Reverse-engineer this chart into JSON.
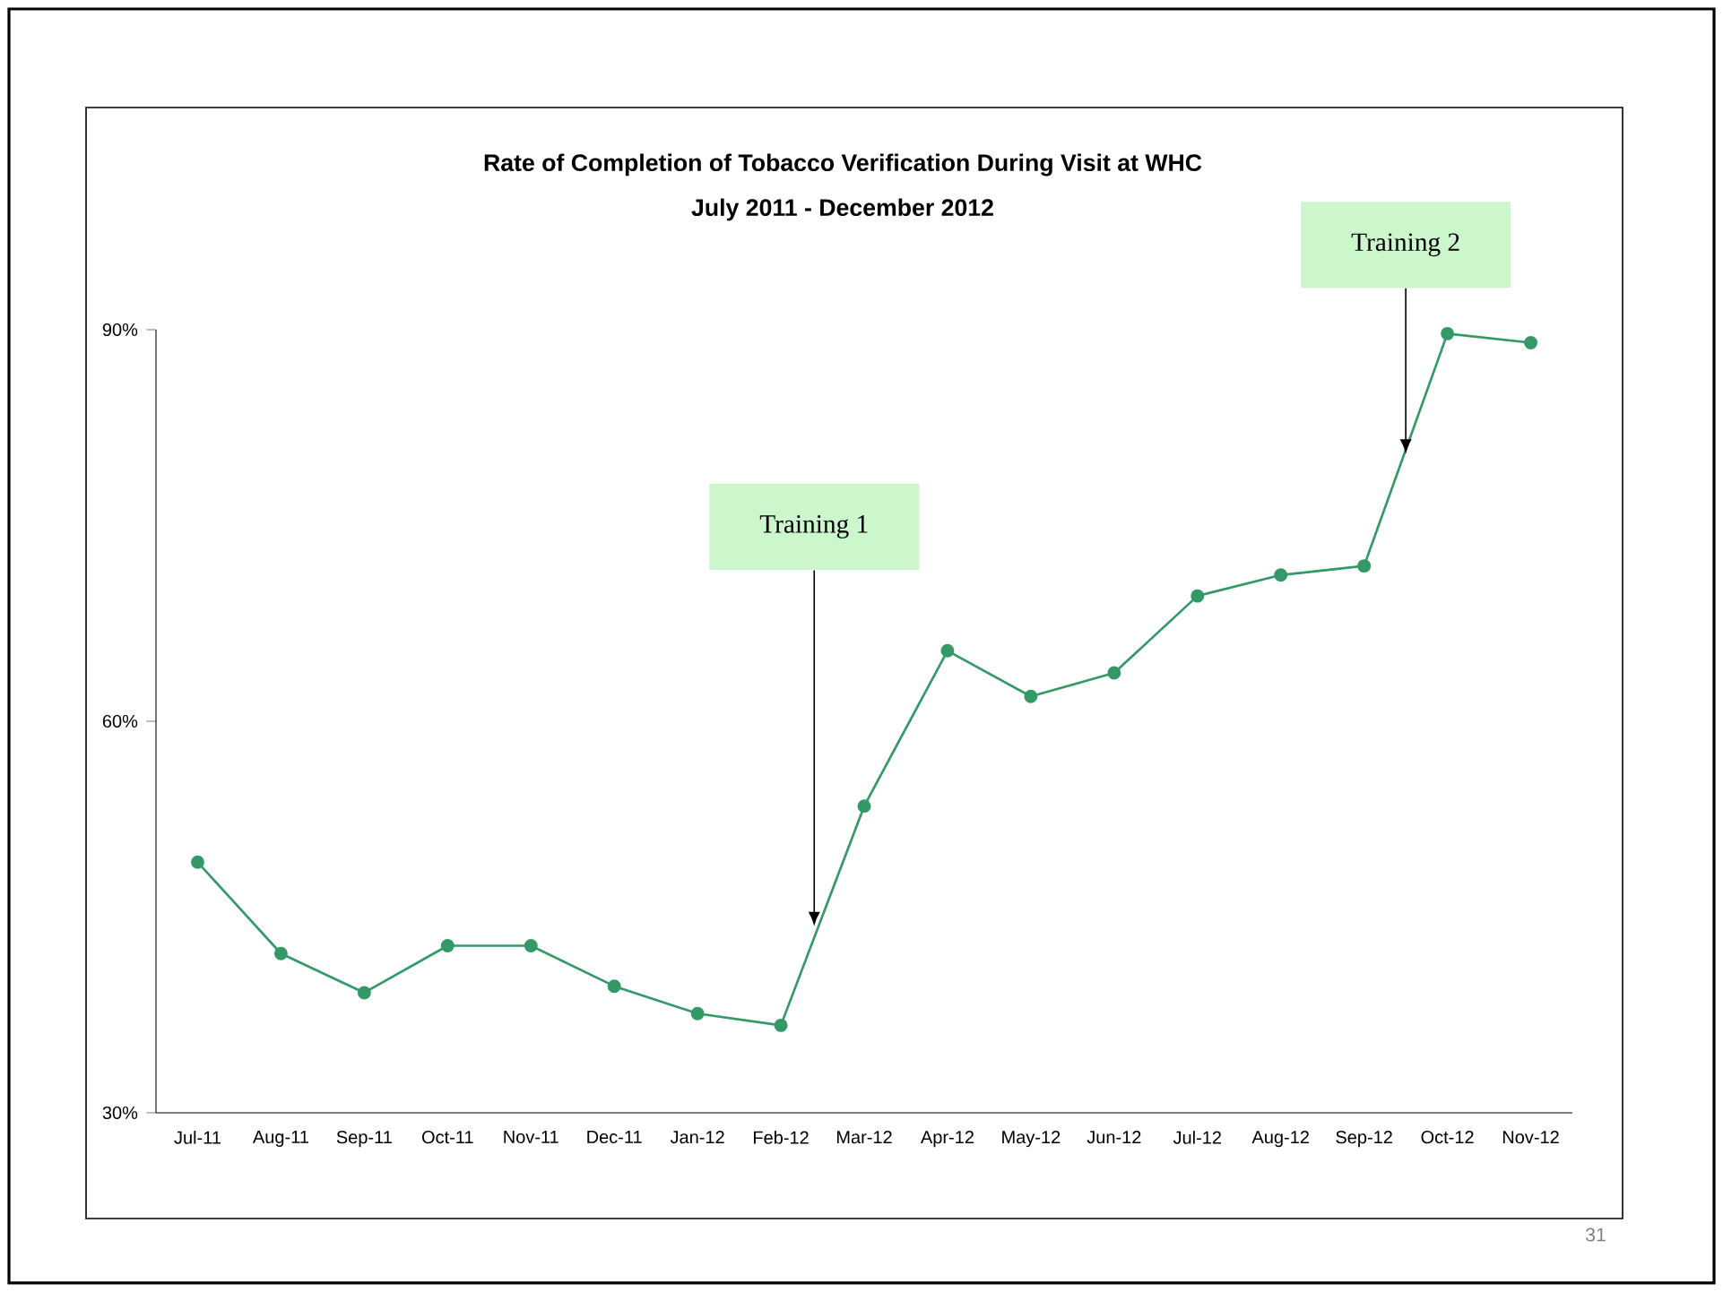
{
  "chart_data": {
    "type": "line",
    "title": "Rate of Completion of Tobacco Verification During Visit at WHC",
    "subtitle": "July 2011 - December 2012",
    "categories": [
      "Jul-11",
      "Aug-11",
      "Sep-11",
      "Oct-11",
      "Nov-11",
      "Dec-11",
      "Jan-12",
      "Feb-12",
      "Mar-12",
      "Apr-12",
      "May-12",
      "Jun-12",
      "Jul-12",
      "Aug-12",
      "Sep-12",
      "Oct-12",
      "Nov-12"
    ],
    "series": [
      {
        "color": "#339966",
        "values": [
          49.2,
          42.2,
          39.2,
          42.8,
          42.8,
          39.7,
          37.6,
          36.7,
          53.5,
          65.4,
          61.9,
          63.7,
          69.6,
          71.2,
          71.9,
          89.7,
          89.0
        ]
      }
    ],
    "ylim": [
      30,
      90
    ],
    "yticks": [
      {
        "value": 30,
        "label": "30%"
      },
      {
        "value": 60,
        "label": "60%"
      },
      {
        "value": 90,
        "label": "90%"
      }
    ],
    "marker": "circle",
    "line_style": "solid",
    "annotations": [
      {
        "text": "Training 1",
        "y": 44.3
      },
      {
        "text": "Training 2",
        "y": 80.5
      },
      "31"
    ]
  }
}
